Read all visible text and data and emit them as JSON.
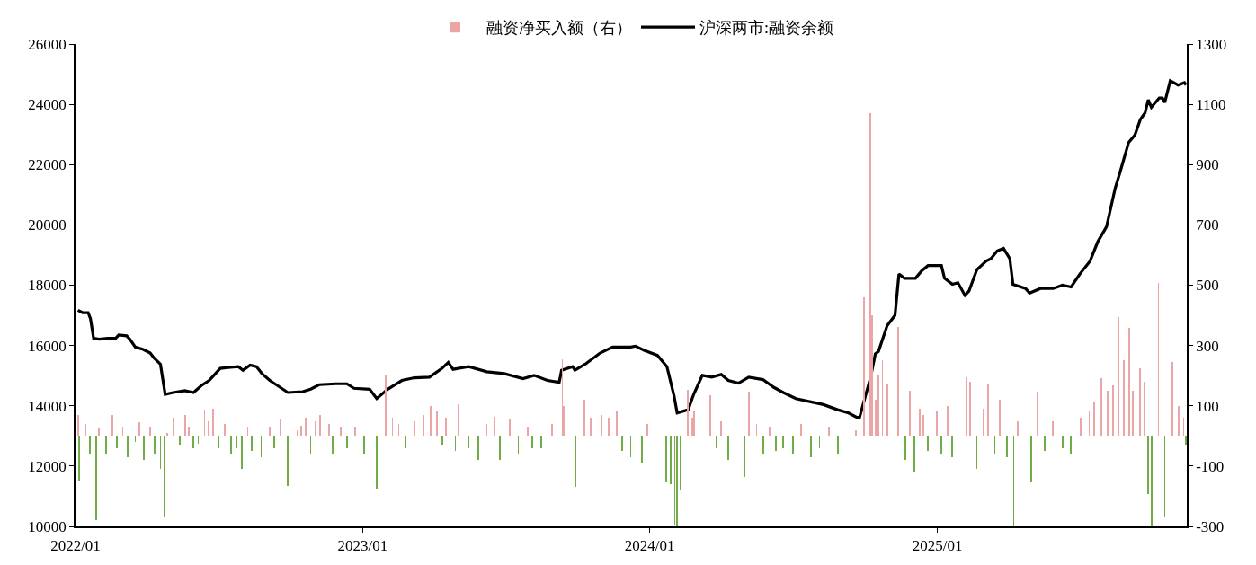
{
  "chart_data": {
    "type": "line",
    "legend": "top",
    "xlim": [
      "2022-01-01",
      "2025-11-14"
    ],
    "xticks": [
      {
        "value": "2022-01-01",
        "label": "2022/01"
      },
      {
        "value": "2023-01-01",
        "label": "2023/01"
      },
      {
        "value": "2024-01-01",
        "label": "2024/01"
      },
      {
        "value": "2025-01-01",
        "label": "2025/01"
      }
    ],
    "ylim": [
      10000,
      26000
    ],
    "yticks": [
      10000,
      12000,
      14000,
      16000,
      18000,
      20000,
      22000,
      24000,
      26000
    ],
    "y2lim": [
      -300,
      1300
    ],
    "y2ticks": [
      -300,
      -100,
      100,
      300,
      500,
      700,
      900,
      1100,
      1300
    ],
    "series": [
      {
        "type": "bar",
        "axis": "y2",
        "name": "融资净买入额（右）",
        "x": [
          "2022-01-04",
          "2022-01-06",
          "2022-01-14",
          "2022-01-19",
          "2022-01-27",
          "2022-01-31",
          "2022-02-09",
          "2022-02-17",
          "2022-02-23",
          "2022-03-02",
          "2022-03-08",
          "2022-03-18",
          "2022-03-23",
          "2022-03-29",
          "2022-04-06",
          "2022-04-12",
          "2022-04-19",
          "2022-04-24",
          "2022-04-28",
          "2022-05-05",
          "2022-05-14",
          "2022-05-20",
          "2022-05-25",
          "2022-05-31",
          "2022-06-06",
          "2022-06-14",
          "2022-06-19",
          "2022-06-25",
          "2022-07-02",
          "2022-07-10",
          "2022-07-18",
          "2022-07-25",
          "2022-07-31",
          "2022-08-08",
          "2022-08-13",
          "2022-08-25",
          "2022-09-05",
          "2022-09-11",
          "2022-09-19",
          "2022-09-28",
          "2022-10-10",
          "2022-10-15",
          "2022-10-21",
          "2022-10-27",
          "2022-11-02",
          "2022-11-08",
          "2022-11-19",
          "2022-11-24",
          "2022-12-04",
          "2022-12-12",
          "2022-12-23",
          "2023-01-03",
          "2023-01-19",
          "2023-01-30",
          "2023-02-08",
          "2023-02-16",
          "2023-02-25",
          "2023-03-08",
          "2023-03-20",
          "2023-03-29",
          "2023-04-06",
          "2023-04-12",
          "2023-04-17",
          "2023-04-29",
          "2023-05-03",
          "2023-05-16",
          "2023-05-28",
          "2023-06-08",
          "2023-06-18",
          "2023-06-25",
          "2023-07-07",
          "2023-07-18",
          "2023-07-30",
          "2023-08-05",
          "2023-08-16",
          "2023-08-30",
          "2023-09-12",
          "2023-09-14",
          "2023-09-29",
          "2023-10-10",
          "2023-10-18",
          "2023-11-01",
          "2023-11-10",
          "2023-11-20",
          "2023-11-27",
          "2023-12-08",
          "2023-12-22",
          "2023-12-29",
          "2024-01-22",
          "2024-01-28",
          "2024-02-02",
          "2024-02-05",
          "2024-02-09",
          "2024-02-19",
          "2024-02-24",
          "2024-02-27",
          "2024-03-18",
          "2024-03-26",
          "2024-04-01",
          "2024-04-10",
          "2024-05-01",
          "2024-05-06",
          "2024-05-16",
          "2024-05-25",
          "2024-06-02",
          "2024-06-10",
          "2024-06-19",
          "2024-07-01",
          "2024-07-12",
          "2024-07-24",
          "2024-08-04",
          "2024-08-16",
          "2024-08-27",
          "2024-09-13",
          "2024-09-19",
          "2024-09-30",
          "2024-10-08",
          "2024-10-10",
          "2024-10-14",
          "2024-10-18",
          "2024-10-23",
          "2024-10-29",
          "2024-11-08",
          "2024-11-12",
          "2024-11-21",
          "2024-11-27",
          "2024-12-03",
          "2024-12-09",
          "2024-12-14",
          "2024-12-20",
          "2024-12-31",
          "2025-01-06",
          "2025-01-14",
          "2025-01-20",
          "2025-01-27",
          "2025-02-07",
          "2025-02-11",
          "2025-02-20",
          "2025-02-28",
          "2025-03-06",
          "2025-03-15",
          "2025-03-21",
          "2025-03-30",
          "2025-04-08",
          "2025-04-13",
          "2025-04-30",
          "2025-05-08",
          "2025-05-17",
          "2025-05-28",
          "2025-06-09",
          "2025-06-20",
          "2025-07-02",
          "2025-07-13",
          "2025-07-19",
          "2025-07-28",
          "2025-08-05",
          "2025-08-12",
          "2025-08-19",
          "2025-08-26",
          "2025-09-02",
          "2025-09-06",
          "2025-09-16",
          "2025-09-21",
          "2025-09-26",
          "2025-09-30",
          "2025-10-09",
          "2025-10-17",
          "2025-10-27",
          "2025-11-04",
          "2025-11-10",
          "2025-11-13"
        ],
        "values": [
          70,
          -150,
          40,
          -60,
          -280,
          25,
          -60,
          68,
          -40,
          30,
          -70,
          -20,
          45,
          -80,
          30,
          -60,
          -110,
          -270,
          10,
          60,
          -30,
          70,
          30,
          -40,
          -25,
          88,
          50,
          91,
          -40,
          40,
          -60,
          -40,
          -110,
          30,
          -50,
          -70,
          30,
          -40,
          55,
          -165,
          20,
          35,
          60,
          -60,
          50,
          68,
          40,
          -60,
          30,
          -40,
          30,
          -60,
          -174,
          200,
          60,
          40,
          -40,
          50,
          70,
          100,
          80,
          -30,
          60,
          -50,
          105,
          -40,
          -80,
          40,
          63,
          -80,
          55,
          -60,
          30,
          -40,
          -40,
          40,
          255,
          100,
          -168,
          120,
          60,
          70,
          60,
          83,
          -50,
          -70,
          -90,
          40,
          -155,
          -160,
          -293,
          -300,
          -180,
          153,
          60,
          83,
          134,
          -40,
          50,
          -80,
          -137,
          148,
          40,
          -60,
          30,
          -50,
          -40,
          -60,
          40,
          -70,
          -40,
          30,
          -60,
          -90,
          20,
          460,
          1070,
          400,
          120,
          200,
          250,
          170,
          242,
          360,
          -80,
          150,
          -120,
          90,
          70,
          -50,
          85,
          -60,
          100,
          -70,
          -300,
          196,
          180,
          -110,
          90,
          171,
          -60,
          120,
          -70,
          -300,
          50,
          -155,
          146,
          -50,
          50,
          -40,
          -60,
          60,
          80,
          110,
          191,
          150,
          168,
          393,
          250,
          357,
          150,
          225,
          180,
          -193,
          -300,
          507,
          -270,
          245,
          100,
          60,
          -30
        ],
        "colors": [
          "#eba5a5",
          "#70ad47",
          "#eba5a5",
          "#70ad47",
          "#70ad47",
          "#eba5a5",
          "#70ad47",
          "#eba5a5",
          "#70ad47",
          "#eba5a5",
          "#70ad47",
          "#70ad47",
          "#eba5a5",
          "#70ad47",
          "#eba5a5",
          "#70ad47",
          "#70ad47",
          "#70ad47",
          "#eba5a5",
          "#eba5a5",
          "#70ad47",
          "#eba5a5",
          "#eba5a5",
          "#70ad47",
          "#70ad47",
          "#eba5a5",
          "#eba5a5",
          "#eba5a5",
          "#70ad47",
          "#eba5a5",
          "#70ad47",
          "#70ad47",
          "#70ad47",
          "#eba5a5",
          "#70ad47",
          "#70ad47",
          "#eba5a5",
          "#70ad47",
          "#eba5a5",
          "#70ad47",
          "#eba5a5",
          "#eba5a5",
          "#eba5a5",
          "#70ad47",
          "#eba5a5",
          "#eba5a5",
          "#eba5a5",
          "#70ad47",
          "#eba5a5",
          "#70ad47",
          "#eba5a5",
          "#70ad47",
          "#70ad47",
          "#eba5a5",
          "#eba5a5",
          "#eba5a5",
          "#70ad47",
          "#eba5a5",
          "#eba5a5",
          "#eba5a5",
          "#eba5a5",
          "#70ad47",
          "#eba5a5",
          "#70ad47",
          "#eba5a5",
          "#70ad47",
          "#70ad47",
          "#eba5a5",
          "#eba5a5",
          "#70ad47",
          "#eba5a5",
          "#70ad47",
          "#eba5a5",
          "#70ad47",
          "#70ad47",
          "#eba5a5",
          "#eba5a5",
          "#eba5a5",
          "#70ad47",
          "#eba5a5",
          "#eba5a5",
          "#eba5a5",
          "#eba5a5",
          "#eba5a5",
          "#70ad47",
          "#70ad47",
          "#70ad47",
          "#eba5a5",
          "#70ad47",
          "#70ad47",
          "#70ad47",
          "#70ad47",
          "#70ad47",
          "#eba5a5",
          "#eba5a5",
          "#eba5a5",
          "#eba5a5",
          "#70ad47",
          "#eba5a5",
          "#70ad47",
          "#70ad47",
          "#eba5a5",
          "#eba5a5",
          "#70ad47",
          "#eba5a5",
          "#70ad47",
          "#70ad47",
          "#70ad47",
          "#eba5a5",
          "#70ad47",
          "#70ad47",
          "#eba5a5",
          "#70ad47",
          "#70ad47",
          "#eba5a5",
          "#eba5a5",
          "#eba5a5",
          "#eba5a5",
          "#eba5a5",
          "#eba5a5",
          "#eba5a5",
          "#eba5a5",
          "#eba5a5",
          "#eba5a5",
          "#70ad47",
          "#eba5a5",
          "#70ad47",
          "#eba5a5",
          "#eba5a5",
          "#70ad47",
          "#eba5a5",
          "#70ad47",
          "#eba5a5",
          "#70ad47",
          "#70ad47",
          "#eba5a5",
          "#eba5a5",
          "#70ad47",
          "#eba5a5",
          "#eba5a5",
          "#70ad47",
          "#eba5a5",
          "#70ad47",
          "#70ad47",
          "#eba5a5",
          "#70ad47",
          "#eba5a5",
          "#70ad47",
          "#eba5a5",
          "#70ad47",
          "#70ad47",
          "#eba5a5",
          "#eba5a5",
          "#eba5a5",
          "#eba5a5",
          "#eba5a5",
          "#eba5a5",
          "#eba5a5",
          "#eba5a5",
          "#eba5a5",
          "#eba5a5",
          "#eba5a5",
          "#eba5a5",
          "#70ad47",
          "#70ad47",
          "#eba5a5",
          "#70ad47",
          "#eba5a5",
          "#eba5a5",
          "#eba5a5",
          "#70ad47"
        ]
      },
      {
        "name": "沪深两市:融资余额",
        "color": "#000000",
        "x": [
          "2022-01-04",
          "2022-01-10",
          "2022-01-17",
          "2022-01-20",
          "2022-01-24",
          "2022-01-31",
          "2022-02-11",
          "2022-02-21",
          "2022-02-25",
          "2022-03-07",
          "2022-03-11",
          "2022-03-18",
          "2022-03-28",
          "2022-04-06",
          "2022-04-11",
          "2022-04-19",
          "2022-04-25",
          "2022-05-05",
          "2022-05-20",
          "2022-05-31",
          "2022-06-10",
          "2022-06-20",
          "2022-07-04",
          "2022-07-14",
          "2022-07-27",
          "2022-08-02",
          "2022-08-11",
          "2022-08-19",
          "2022-08-26",
          "2022-09-05",
          "2022-09-28",
          "2022-10-17",
          "2022-10-27",
          "2022-11-07",
          "2022-11-28",
          "2022-12-12",
          "2022-12-21",
          "2023-01-10",
          "2023-01-19",
          "2023-02-02",
          "2023-02-20",
          "2023-03-08",
          "2023-03-27",
          "2023-04-12",
          "2023-04-20",
          "2023-04-26",
          "2023-05-16",
          "2023-06-08",
          "2023-06-30",
          "2023-07-24",
          "2023-08-07",
          "2023-08-24",
          "2023-09-08",
          "2023-09-11",
          "2023-09-25",
          "2023-09-28",
          "2023-10-11",
          "2023-10-30",
          "2023-11-15",
          "2023-12-08",
          "2023-12-14",
          "2023-12-25",
          "2024-01-11",
          "2024-01-23",
          "2024-02-01",
          "2024-02-05",
          "2024-02-19",
          "2024-02-26",
          "2024-03-08",
          "2024-03-20",
          "2024-04-01",
          "2024-04-10",
          "2024-04-23",
          "2024-05-06",
          "2024-05-24",
          "2024-06-07",
          "2024-06-19",
          "2024-07-05",
          "2024-07-24",
          "2024-08-09",
          "2024-08-27",
          "2024-09-10",
          "2024-09-20",
          "2024-09-24",
          "2024-10-08",
          "2024-10-14",
          "2024-10-18",
          "2024-10-29",
          "2024-11-08",
          "2024-11-13",
          "2024-11-20",
          "2024-12-04",
          "2024-12-12",
          "2024-12-20",
          "2025-01-06",
          "2025-01-10",
          "2025-01-20",
          "2025-01-27",
          "2025-02-05",
          "2025-02-10",
          "2025-02-20",
          "2025-03-04",
          "2025-03-10",
          "2025-03-18",
          "2025-03-26",
          "2025-04-03",
          "2025-04-07",
          "2025-04-23",
          "2025-04-28",
          "2025-05-12",
          "2025-05-28",
          "2025-06-09",
          "2025-06-20",
          "2025-07-01",
          "2025-07-14",
          "2025-07-24",
          "2025-08-04",
          "2025-08-15",
          "2025-08-21",
          "2025-09-01",
          "2025-09-09",
          "2025-09-16",
          "2025-09-22",
          "2025-09-26",
          "2025-09-30",
          "2025-10-10",
          "2025-10-14",
          "2025-10-17",
          "2025-10-24",
          "2025-11-03",
          "2025-11-11",
          "2025-11-13"
        ],
        "values": [
          17170,
          17090,
          17090,
          16890,
          16240,
          16210,
          16240,
          16240,
          16350,
          16320,
          16210,
          15950,
          15870,
          15750,
          15580,
          15380,
          14380,
          14440,
          14500,
          14440,
          14670,
          14840,
          15240,
          15270,
          15300,
          15180,
          15350,
          15300,
          15070,
          14840,
          14440,
          14470,
          14550,
          14700,
          14730,
          14730,
          14580,
          14550,
          14240,
          14550,
          14840,
          14930,
          14950,
          15240,
          15440,
          15210,
          15300,
          15130,
          15070,
          14900,
          15010,
          14840,
          14780,
          15180,
          15300,
          15180,
          15380,
          15750,
          15950,
          15950,
          15980,
          15840,
          15670,
          15300,
          14330,
          13760,
          13870,
          14380,
          15010,
          14950,
          15040,
          14840,
          14750,
          14950,
          14870,
          14610,
          14440,
          14240,
          14130,
          14040,
          13870,
          13760,
          13620,
          13620,
          14950,
          15720,
          15800,
          16660,
          17000,
          18370,
          18230,
          18230,
          18480,
          18650,
          18650,
          18230,
          18030,
          18080,
          17660,
          17800,
          18510,
          18800,
          18880,
          19140,
          19220,
          18880,
          18030,
          17890,
          17740,
          17890,
          17890,
          18000,
          17940,
          18370,
          18800,
          19450,
          19940,
          21220,
          21730,
          22730,
          22980,
          23500,
          23720,
          24150,
          23900,
          24210,
          24210,
          24060,
          24780,
          24640,
          24720,
          24640
        ]
      }
    ]
  }
}
